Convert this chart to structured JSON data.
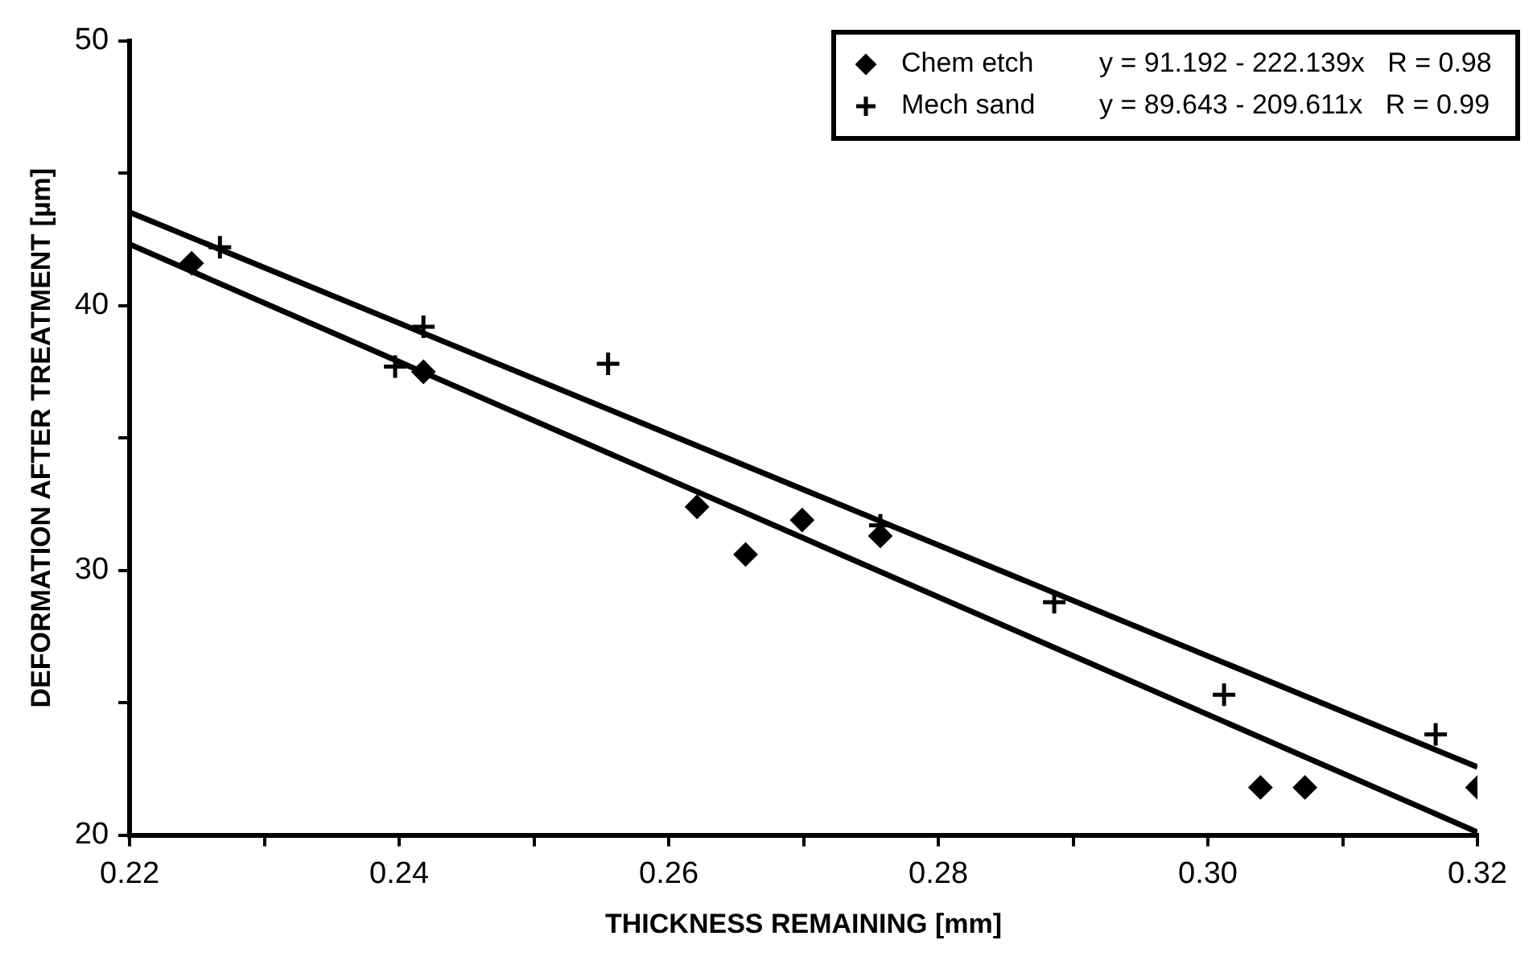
{
  "chart_data": {
    "type": "scatter",
    "xlabel": "THICKNESS REMAINING [mm]",
    "ylabel": "DEFORMATION AFTER TREATMENT [µm]",
    "xlim": [
      0.22,
      0.32
    ],
    "ylim": [
      20,
      50
    ],
    "xticks": [
      0.22,
      {
        "value": 0.23,
        "label": null
      },
      0.24,
      {
        "value": 0.25,
        "label": null
      },
      0.26,
      {
        "value": 0.27,
        "label": null
      },
      0.28,
      {
        "value": 0.29,
        "label": null
      },
      {
        "value": 0.3,
        "label": "0.30"
      },
      {
        "value": 0.31,
        "label": null
      },
      0.32
    ],
    "yticks": [
      20,
      {
        "value": 25,
        "label": null
      },
      30,
      {
        "value": 35,
        "label": null
      },
      40,
      {
        "value": 45,
        "label": null
      },
      50
    ],
    "grid": false,
    "legend": "top right",
    "annotations": [
      "y = 91.192 - 222.139x   R = 0.98",
      "y = 89.643 - 209.611x   R = 0.99"
    ],
    "series": [
      {
        "name": "Chem etch",
        "color": "#000000",
        "marker": "diamond",
        "x": [
          0.2246,
          0.2418,
          0.2621,
          0.2657,
          0.2699,
          0.2757,
          0.3039,
          0.3072,
          0.32
        ],
        "values": [
          41.6,
          37.5,
          32.4,
          30.6,
          31.9,
          31.3,
          21.8,
          21.8,
          21.8
        ]
      },
      {
        "name": "Mech sand",
        "color": "#000000",
        "marker": "cross",
        "x": [
          0.2267,
          0.2397,
          0.2418,
          0.2555,
          0.2757,
          0.2886,
          0.3012,
          0.3169
        ],
        "values": [
          42.2,
          37.7,
          39.2,
          37.8,
          31.7,
          28.8,
          25.3,
          23.8
        ]
      },
      {
        "type": "line",
        "color": "#000000",
        "marker": "none",
        "x": [
          0.22,
          0.32
        ],
        "values": [
          42.32,
          20.11
        ]
      },
      {
        "type": "line",
        "color": "#000000",
        "marker": "none",
        "x": [
          0.22,
          0.32
        ],
        "values": [
          43.53,
          22.57
        ]
      }
    ]
  }
}
